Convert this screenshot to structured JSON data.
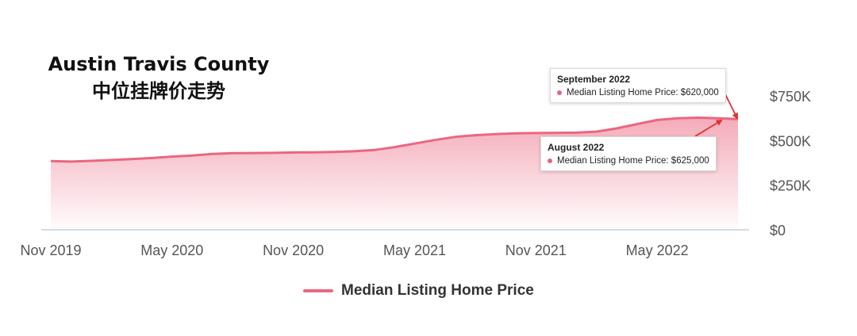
{
  "title": {
    "line1": "Austin Travis County",
    "line2": "中位挂牌价走势"
  },
  "colors": {
    "series": "#ec6680",
    "arrow": "#e0312e",
    "axis": "#b8c4e0"
  },
  "tooltips": [
    {
      "month": "September 2022",
      "text": "Median Listing Home Price: $620,000"
    },
    {
      "month": "August 2022",
      "text": "Median Listing Home Price: $625,000"
    }
  ],
  "legend": {
    "label": "Median Listing Home Price"
  },
  "chart_data": {
    "type": "area",
    "title": "",
    "xlabel": "",
    "ylabel": "",
    "ylim": [
      0,
      750000
    ],
    "y_ticks": [
      {
        "value": 750000,
        "label": "$750K"
      },
      {
        "value": 500000,
        "label": "$500K"
      },
      {
        "value": 250000,
        "label": "$250K"
      },
      {
        "value": 0,
        "label": "$0"
      }
    ],
    "x_ticks": [
      {
        "date": "2019-11",
        "label": "Nov 2019"
      },
      {
        "date": "2020-05",
        "label": "May 2020"
      },
      {
        "date": "2020-11",
        "label": "Nov 2020"
      },
      {
        "date": "2021-05",
        "label": "May 2021"
      },
      {
        "date": "2021-11",
        "label": "Nov 2021"
      },
      {
        "date": "2022-05",
        "label": "May 2022"
      }
    ],
    "series": [
      {
        "name": "Median Listing Home Price",
        "x": [
          "2019-11",
          "2019-12",
          "2020-01",
          "2020-02",
          "2020-03",
          "2020-04",
          "2020-05",
          "2020-06",
          "2020-07",
          "2020-08",
          "2020-09",
          "2020-10",
          "2020-11",
          "2020-12",
          "2021-01",
          "2021-02",
          "2021-03",
          "2021-04",
          "2021-05",
          "2021-06",
          "2021-07",
          "2021-08",
          "2021-09",
          "2021-10",
          "2021-11",
          "2021-12",
          "2022-01",
          "2022-02",
          "2022-03",
          "2022-04",
          "2022-05",
          "2022-06",
          "2022-07",
          "2022-08",
          "2022-09"
        ],
        "values": [
          385000,
          382000,
          386000,
          391000,
          396000,
          402000,
          410000,
          416000,
          425000,
          429000,
          430000,
          431000,
          433000,
          434000,
          436000,
          440000,
          447000,
          463000,
          483000,
          503000,
          520000,
          530000,
          536000,
          540000,
          542000,
          543000,
          544000,
          550000,
          568000,
          592000,
          615000,
          625000,
          628000,
          625000,
          620000
        ]
      }
    ]
  }
}
